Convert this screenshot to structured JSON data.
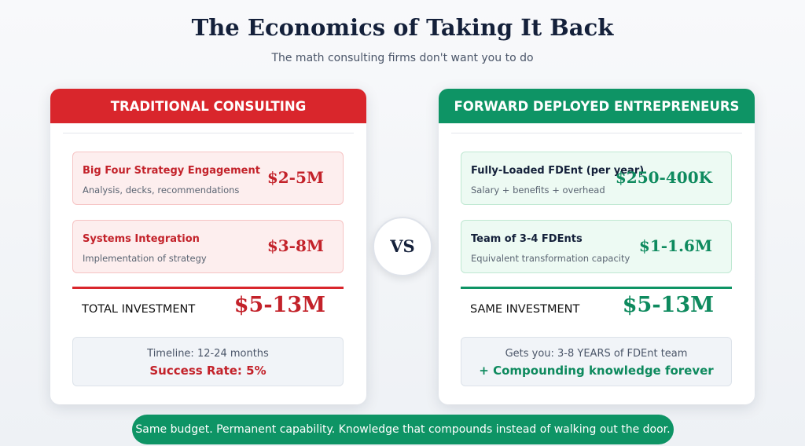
{
  "header": {
    "title": "The Economics of Taking It Back",
    "subtitle": "The math consulting firms don't want you to do"
  },
  "left": {
    "title": "TRADITIONAL CONSULTING",
    "items": [
      {
        "label": "Big Four Strategy Engagement",
        "desc": "Analysis, decks, recommendations",
        "value": "$2-5M"
      },
      {
        "label": "Systems Integration",
        "desc": "Implementation of strategy",
        "value": "$3-8M"
      }
    ],
    "total": {
      "label": "TOTAL INVESTMENT",
      "value": "$5-13M"
    },
    "footer": {
      "line1": "Timeline: 12-24 months",
      "line2": "Success Rate: 5%"
    }
  },
  "vs": "VS",
  "right": {
    "title": "FORWARD DEPLOYED ENTREPRENEURS",
    "items": [
      {
        "label": "Fully-Loaded FDEnt (per year)",
        "desc": "Salary + benefits + overhead",
        "value": "$250-400K"
      },
      {
        "label": "Team of 3-4 FDEnts",
        "desc": "Equivalent transformation capacity",
        "value": "$1-1.6M"
      }
    ],
    "total": {
      "label": "SAME INVESTMENT",
      "value": "$5-13M"
    },
    "footer": {
      "line1": "Gets you: 3-8 YEARS of FDEnt team",
      "line2": "+ Compounding knowledge forever"
    }
  },
  "banner": "Same budget. Permanent capability. Knowledge that compounds instead of walking out the door."
}
